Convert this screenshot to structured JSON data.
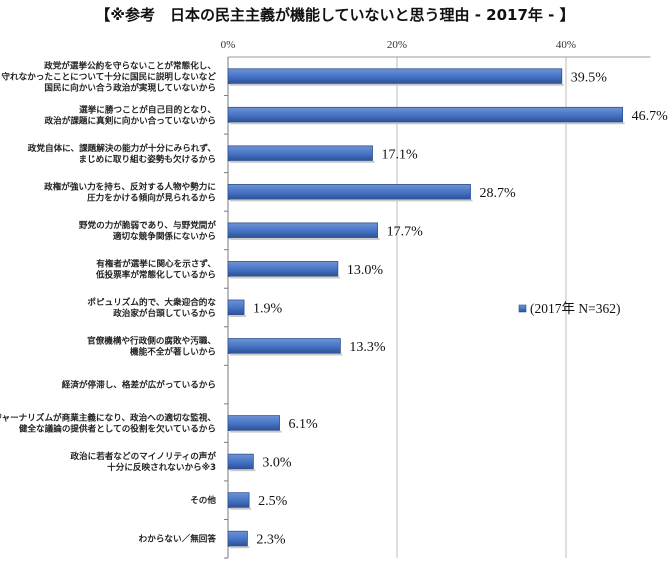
{
  "title": "【※参考　日本の民主主義が機能していないと思う理由 - 2017年 - 】",
  "chart_data": {
    "type": "bar",
    "orientation": "horizontal",
    "categories": [
      [
        "政党が選挙公約を守らないことが常態化し、",
        "守れなかったことについて十分に国民に説明しないなど",
        "国民に向かい合う政治が実現していないから"
      ],
      [
        "選挙に勝つことが自己目的となり、",
        "政治が課題に真剣に向かい合っていないから"
      ],
      [
        "政党自体に、課題解決の能力が十分にみられず、",
        "まじめに取り組む姿勢も欠けるから"
      ],
      [
        "政権が強い力を持ち、反対する人物や勢力に",
        "圧力をかける傾向が見られるから"
      ],
      [
        "野党の力が脆弱であり、与野党間が",
        "適切な競争関係にないから"
      ],
      [
        "有権者が選挙に関心を示さず、",
        "低投票率が常態化しているから"
      ],
      [
        "ポピュリズム的で、大衆迎合的な",
        "政治家が台頭しているから"
      ],
      [
        "官僚機構や行政側の腐敗や汚職、",
        "機能不全が著しいから"
      ],
      [
        "経済が停滞し、格差が広がっているから"
      ],
      [
        "ジャーナリズムが商業主義になり、政治への適切な監視、",
        "健全な議論の提供者としての役割を欠いているから"
      ],
      [
        "政治に若者などのマイノリティの声が",
        "十分に反映されないから※3"
      ],
      [
        "その他"
      ],
      [
        "わからない／無回答"
      ]
    ],
    "series": [
      {
        "name": "(2017年 N=362)",
        "values": [
          39.5,
          46.7,
          17.1,
          28.7,
          17.7,
          13.0,
          1.9,
          13.3,
          null,
          6.1,
          3.0,
          2.5,
          2.3
        ],
        "labels": [
          "39.5%",
          "46.7%",
          "17.1%",
          "28.7%",
          "17.7%",
          "13.0%",
          "1.9%",
          "13.3%",
          "",
          "6.1%",
          "3.0%",
          "2.5%",
          "2.3%"
        ],
        "color": "#4472c4"
      }
    ],
    "xlim": [
      0,
      50
    ],
    "xticks": [
      0,
      20,
      40
    ],
    "xtick_labels": [
      "0%",
      "20%",
      "40%"
    ],
    "grid": true,
    "legend_position": "right"
  }
}
